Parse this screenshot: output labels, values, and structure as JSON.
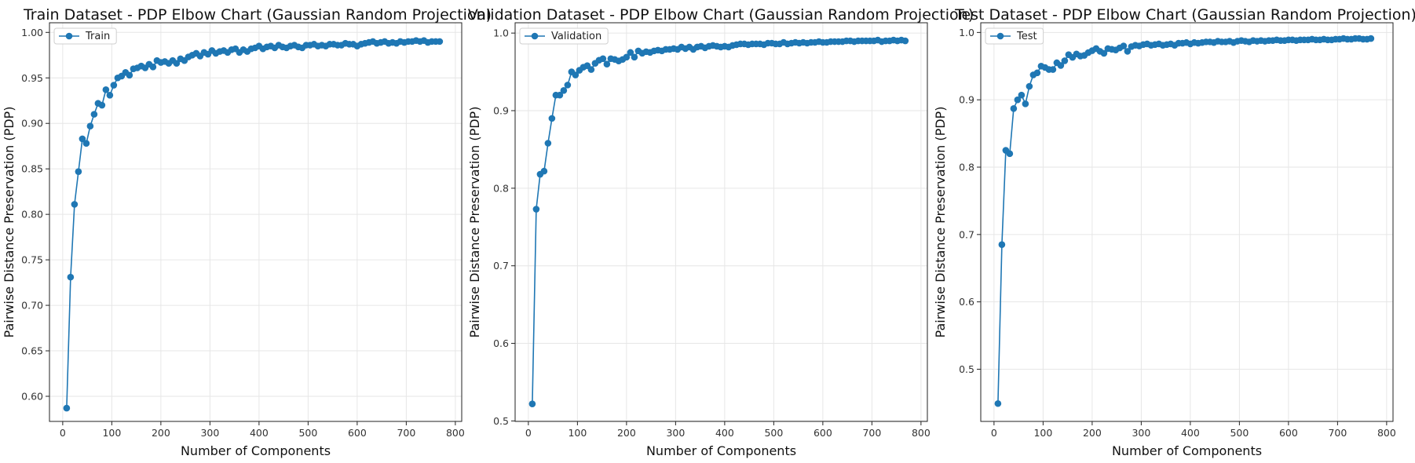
{
  "chart_data": [
    {
      "type": "line",
      "title": "Train Dataset - PDP Elbow Chart (Gaussian Random Projection)",
      "xlabel": "Number of Components",
      "ylabel": "Pairwise Distance Preservation (PDP)",
      "xlim": [
        -27,
        813
      ],
      "ylim": [
        0.5724,
        1.0106
      ],
      "xticks": [
        0,
        100,
        200,
        300,
        400,
        500,
        600,
        700,
        800
      ],
      "yticks": [
        0.6,
        0.65,
        0.7,
        0.75,
        0.8,
        0.85,
        0.9,
        0.95,
        1.0
      ],
      "ytick_labels": [
        "0.60",
        "0.65",
        "0.70",
        "0.75",
        "0.80",
        "0.85",
        "0.90",
        "0.95",
        "1.00"
      ],
      "grid": true,
      "legend_position": "top-left",
      "series": [
        {
          "name": "Train",
          "color": "#1f77b4",
          "x": [
            8,
            16,
            24,
            32,
            40,
            48,
            56,
            64,
            72,
            80,
            88,
            96,
            104,
            112,
            120,
            128,
            136,
            144,
            152,
            160,
            168,
            176,
            184,
            192,
            200,
            208,
            216,
            224,
            232,
            240,
            248,
            256,
            264,
            272,
            280,
            288,
            296,
            304,
            312,
            320,
            328,
            336,
            344,
            352,
            360,
            368,
            376,
            384,
            392,
            400,
            408,
            416,
            424,
            432,
            440,
            448,
            456,
            464,
            472,
            480,
            488,
            496,
            504,
            512,
            520,
            528,
            536,
            544,
            552,
            560,
            568,
            576,
            584,
            592,
            600,
            608,
            616,
            624,
            632,
            640,
            648,
            656,
            664,
            672,
            680,
            688,
            696,
            704,
            712,
            720,
            728,
            736,
            744,
            752,
            760,
            768
          ],
          "y": [
            0.587,
            0.731,
            0.811,
            0.847,
            0.883,
            0.878,
            0.897,
            0.91,
            0.922,
            0.92,
            0.937,
            0.931,
            0.942,
            0.95,
            0.952,
            0.956,
            0.953,
            0.96,
            0.961,
            0.963,
            0.961,
            0.965,
            0.962,
            0.969,
            0.967,
            0.968,
            0.966,
            0.969,
            0.966,
            0.971,
            0.969,
            0.973,
            0.975,
            0.977,
            0.974,
            0.978,
            0.976,
            0.98,
            0.977,
            0.979,
            0.98,
            0.978,
            0.981,
            0.982,
            0.978,
            0.981,
            0.979,
            0.982,
            0.983,
            0.985,
            0.982,
            0.984,
            0.985,
            0.983,
            0.986,
            0.984,
            0.983,
            0.985,
            0.986,
            0.984,
            0.983,
            0.986,
            0.986,
            0.987,
            0.985,
            0.986,
            0.985,
            0.987,
            0.987,
            0.986,
            0.986,
            0.988,
            0.987,
            0.987,
            0.985,
            0.987,
            0.988,
            0.989,
            0.99,
            0.988,
            0.989,
            0.99,
            0.988,
            0.989,
            0.988,
            0.99,
            0.989,
            0.99,
            0.99,
            0.991,
            0.99,
            0.991,
            0.989,
            0.99,
            0.99,
            0.99
          ]
        }
      ]
    },
    {
      "type": "line",
      "title": "Validation Dataset - PDP Elbow Chart (Gaussian Random Projection)",
      "xlabel": "Number of Components",
      "ylabel": "Pairwise Distance Preservation (PDP)",
      "xlim": [
        -27,
        813
      ],
      "ylim": [
        0.4994,
        1.0133
      ],
      "xticks": [
        0,
        100,
        200,
        300,
        400,
        500,
        600,
        700,
        800
      ],
      "yticks": [
        0.5,
        0.6,
        0.7,
        0.8,
        0.9,
        1.0
      ],
      "ytick_labels": [
        "0.5",
        "0.6",
        "0.7",
        "0.8",
        "0.9",
        "1.0"
      ],
      "grid": true,
      "legend_position": "top-left",
      "series": [
        {
          "name": "Validation",
          "color": "#1f77b4",
          "x": [
            8,
            16,
            24,
            32,
            40,
            48,
            56,
            64,
            72,
            80,
            88,
            96,
            104,
            112,
            120,
            128,
            136,
            144,
            152,
            160,
            168,
            176,
            184,
            192,
            200,
            208,
            216,
            224,
            232,
            240,
            248,
            256,
            264,
            272,
            280,
            288,
            296,
            304,
            312,
            320,
            328,
            336,
            344,
            352,
            360,
            368,
            376,
            384,
            392,
            400,
            408,
            416,
            424,
            432,
            440,
            448,
            456,
            464,
            472,
            480,
            488,
            496,
            504,
            512,
            520,
            528,
            536,
            544,
            552,
            560,
            568,
            576,
            584,
            592,
            600,
            608,
            616,
            624,
            632,
            640,
            648,
            656,
            664,
            672,
            680,
            688,
            696,
            704,
            712,
            720,
            728,
            736,
            744,
            752,
            760,
            768
          ],
          "y": [
            0.522,
            0.773,
            0.818,
            0.822,
            0.858,
            0.89,
            0.92,
            0.92,
            0.926,
            0.933,
            0.95,
            0.946,
            0.952,
            0.956,
            0.958,
            0.953,
            0.961,
            0.965,
            0.967,
            0.96,
            0.967,
            0.966,
            0.964,
            0.966,
            0.969,
            0.975,
            0.969,
            0.977,
            0.974,
            0.976,
            0.975,
            0.977,
            0.978,
            0.977,
            0.979,
            0.979,
            0.98,
            0.979,
            0.982,
            0.98,
            0.982,
            0.979,
            0.982,
            0.983,
            0.981,
            0.983,
            0.984,
            0.983,
            0.982,
            0.983,
            0.982,
            0.984,
            0.985,
            0.986,
            0.986,
            0.985,
            0.986,
            0.986,
            0.986,
            0.985,
            0.987,
            0.987,
            0.986,
            0.986,
            0.988,
            0.986,
            0.987,
            0.988,
            0.987,
            0.988,
            0.987,
            0.988,
            0.988,
            0.989,
            0.988,
            0.988,
            0.989,
            0.989,
            0.989,
            0.989,
            0.99,
            0.99,
            0.989,
            0.99,
            0.99,
            0.99,
            0.99,
            0.99,
            0.991,
            0.989,
            0.99,
            0.99,
            0.991,
            0.99,
            0.991,
            0.99
          ]
        }
      ]
    },
    {
      "type": "line",
      "title": "Test Dataset - PDP Elbow Chart (Gaussian Random Projection)",
      "xlabel": "Number of Components",
      "ylabel": "Pairwise Distance Preservation (PDP)",
      "xlim": [
        -27,
        813
      ],
      "ylim": [
        0.4225,
        1.0144
      ],
      "xticks": [
        0,
        100,
        200,
        300,
        400,
        500,
        600,
        700,
        800
      ],
      "yticks": [
        0.5,
        0.6,
        0.7,
        0.8,
        0.9,
        1.0
      ],
      "ytick_labels": [
        "0.5",
        "0.6",
        "0.7",
        "0.8",
        "0.9",
        "1.0"
      ],
      "grid": true,
      "legend_position": "top-left",
      "series": [
        {
          "name": "Test",
          "color": "#1f77b4",
          "x": [
            8,
            16,
            24,
            32,
            40,
            48,
            56,
            64,
            72,
            80,
            88,
            96,
            104,
            112,
            120,
            128,
            136,
            144,
            152,
            160,
            168,
            176,
            184,
            192,
            200,
            208,
            216,
            224,
            232,
            240,
            248,
            256,
            264,
            272,
            280,
            288,
            296,
            304,
            312,
            320,
            328,
            336,
            344,
            352,
            360,
            368,
            376,
            384,
            392,
            400,
            408,
            416,
            424,
            432,
            440,
            448,
            456,
            464,
            472,
            480,
            488,
            496,
            504,
            512,
            520,
            528,
            536,
            544,
            552,
            560,
            568,
            576,
            584,
            592,
            600,
            608,
            616,
            624,
            632,
            640,
            648,
            656,
            664,
            672,
            680,
            688,
            696,
            704,
            712,
            720,
            728,
            736,
            744,
            752,
            760,
            768
          ],
          "y": [
            0.449,
            0.685,
            0.825,
            0.82,
            0.887,
            0.9,
            0.907,
            0.894,
            0.92,
            0.937,
            0.94,
            0.95,
            0.948,
            0.945,
            0.945,
            0.955,
            0.951,
            0.958,
            0.967,
            0.963,
            0.968,
            0.965,
            0.966,
            0.97,
            0.973,
            0.976,
            0.972,
            0.969,
            0.976,
            0.975,
            0.974,
            0.977,
            0.98,
            0.972,
            0.979,
            0.981,
            0.98,
            0.982,
            0.983,
            0.981,
            0.982,
            0.983,
            0.981,
            0.982,
            0.983,
            0.981,
            0.984,
            0.984,
            0.985,
            0.983,
            0.985,
            0.984,
            0.985,
            0.986,
            0.986,
            0.985,
            0.987,
            0.986,
            0.986,
            0.987,
            0.985,
            0.987,
            0.988,
            0.987,
            0.986,
            0.988,
            0.987,
            0.988,
            0.987,
            0.988,
            0.988,
            0.989,
            0.988,
            0.988,
            0.989,
            0.989,
            0.988,
            0.989,
            0.989,
            0.989,
            0.99,
            0.989,
            0.989,
            0.99,
            0.989,
            0.989,
            0.99,
            0.99,
            0.991,
            0.99,
            0.99,
            0.991,
            0.991,
            0.99,
            0.99,
            0.991
          ]
        }
      ]
    }
  ]
}
